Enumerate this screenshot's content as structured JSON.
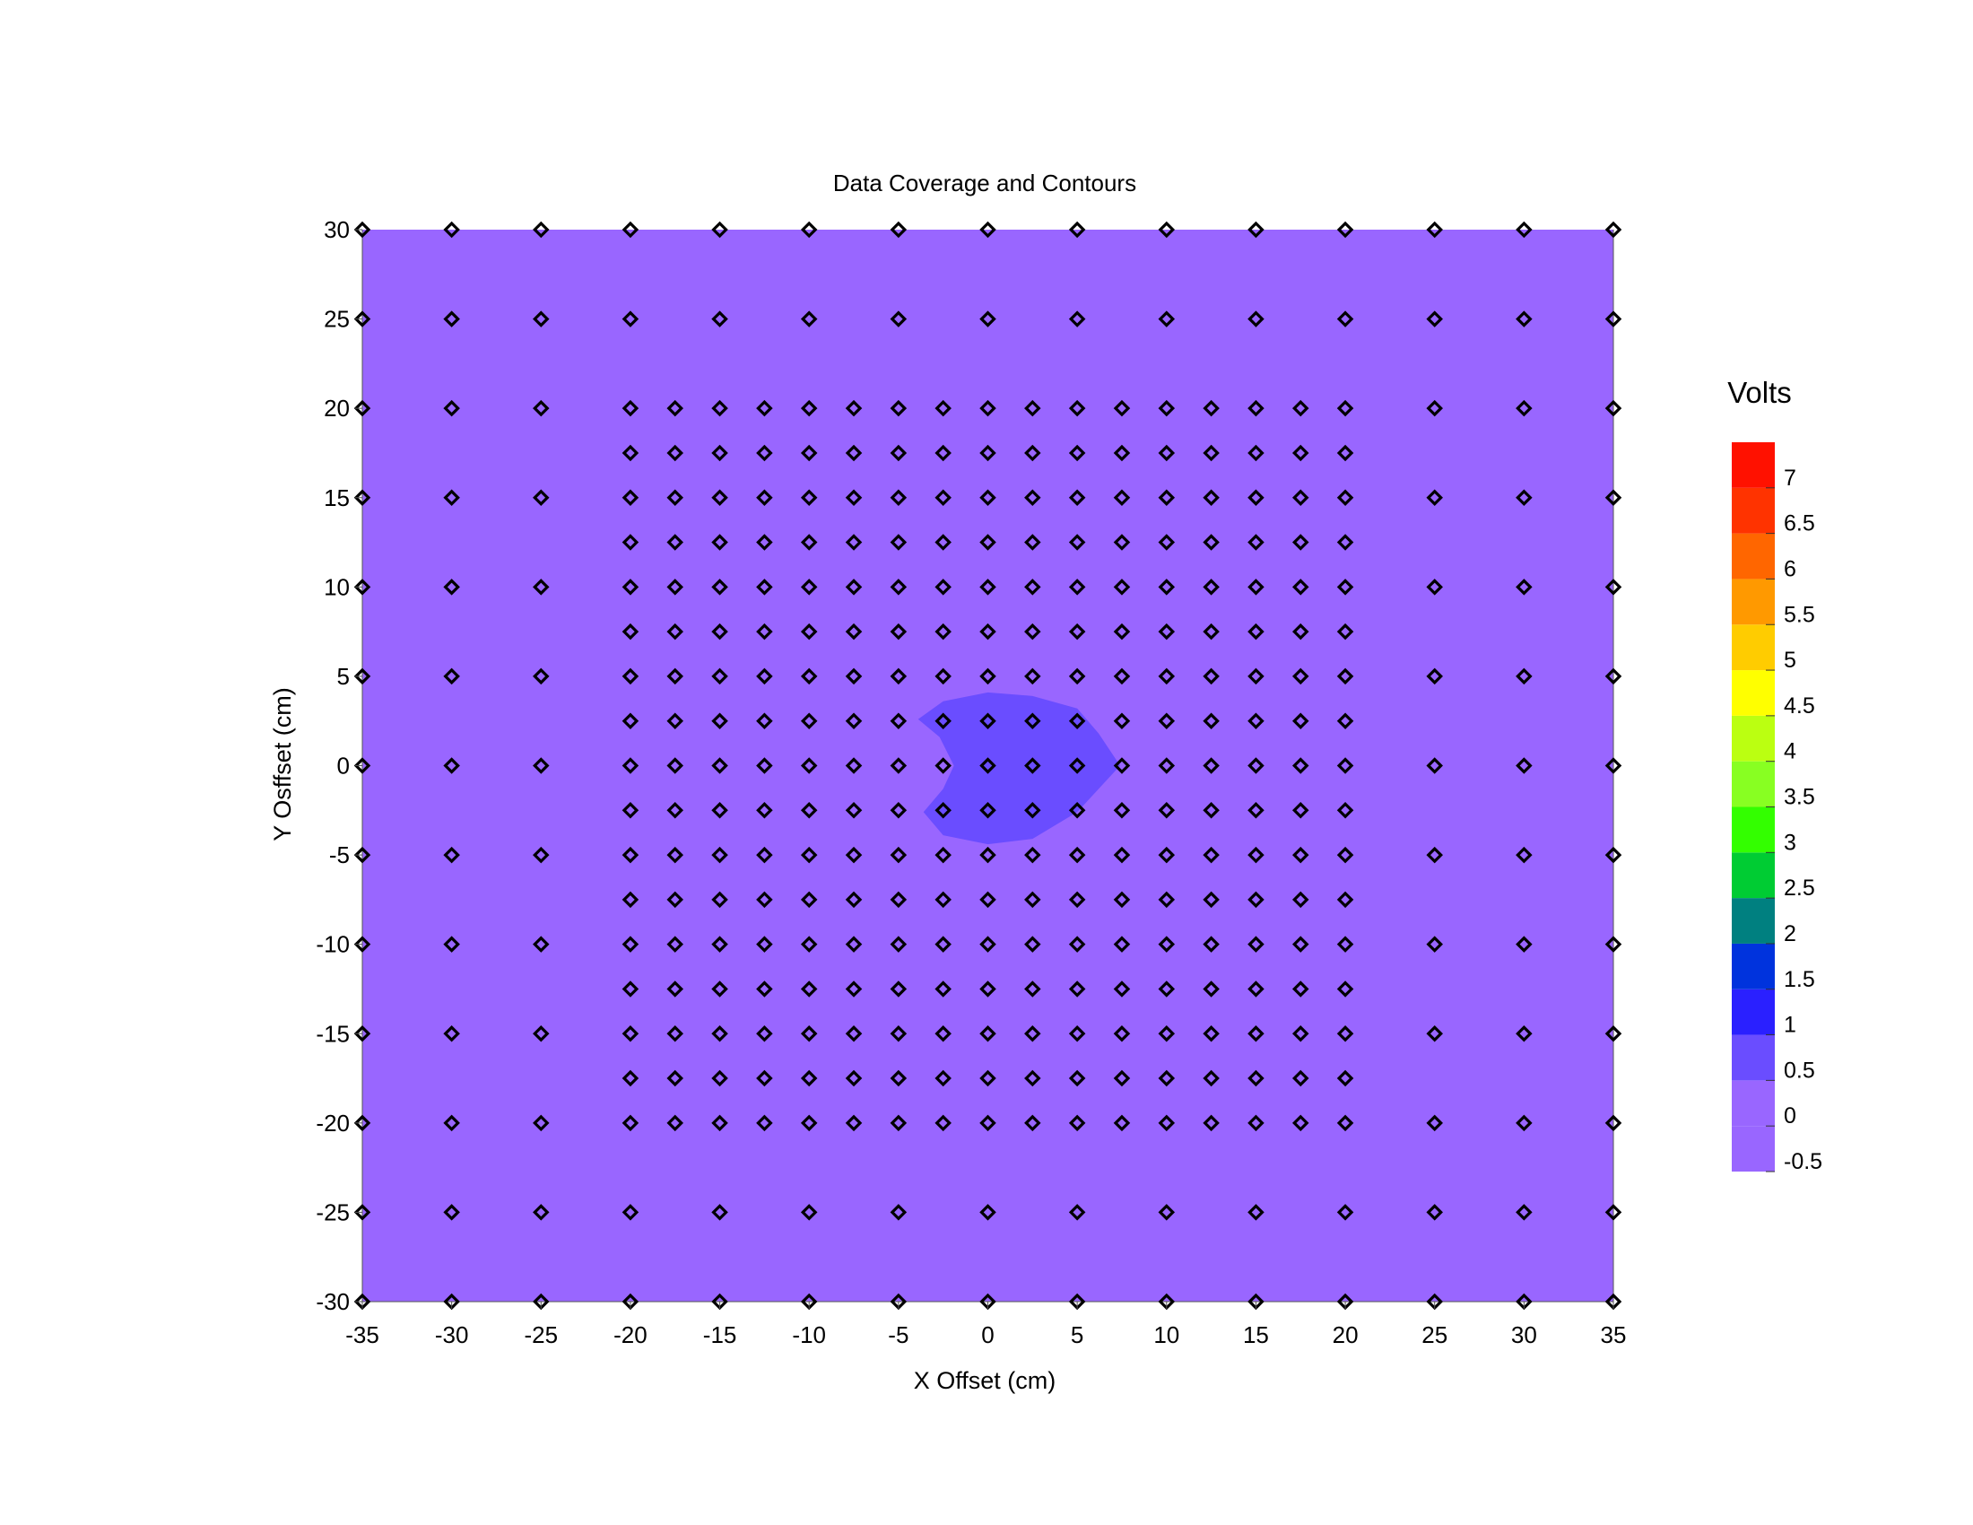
{
  "chart_data": {
    "type": "contour",
    "title": "Data Coverage and Contours",
    "xlabel": "X Offset (cm)",
    "ylabel": "Y Osffset (cm)",
    "xlim": [
      -35,
      35
    ],
    "ylim": [
      -30,
      30
    ],
    "xticks": [
      -35,
      -30,
      -25,
      -20,
      -15,
      -10,
      -5,
      0,
      5,
      10,
      15,
      20,
      25,
      30,
      35
    ],
    "yticks": [
      30,
      25,
      20,
      15,
      10,
      5,
      0,
      -5,
      -10,
      -15,
      -20,
      -25,
      -30
    ],
    "background_level": {
      "range": [
        0,
        0.5
      ],
      "color": "#9966ff"
    },
    "contour_region": {
      "range": [
        0.5,
        1
      ],
      "color": "#6a4dff",
      "boundary": [
        [
          -3.9,
          2.6
        ],
        [
          -2.5,
          3.6
        ],
        [
          0,
          4.1
        ],
        [
          2.5,
          3.9
        ],
        [
          5,
          3.2
        ],
        [
          6.2,
          1.8
        ],
        [
          7.4,
          0
        ],
        [
          6.2,
          -1.3
        ],
        [
          5,
          -2.6
        ],
        [
          2.5,
          -4.1
        ],
        [
          0,
          -4.4
        ],
        [
          -2.5,
          -3.9
        ],
        [
          -3.6,
          -2.6
        ],
        [
          -2.5,
          -1.3
        ],
        [
          -1.9,
          0
        ],
        [
          -2.7,
          1.6
        ]
      ]
    },
    "samples": {
      "coarse_x": [
        -35,
        -30,
        -25,
        -20,
        -15,
        -10,
        -5,
        0,
        5,
        10,
        15,
        20,
        25,
        30,
        35
      ],
      "coarse_y_outer": [
        30,
        -30
      ],
      "coarse_y_mid": [
        25,
        -25
      ],
      "mid_x_sparse": [
        -35,
        -30,
        -25,
        -20,
        -15,
        -10,
        -5,
        0,
        5,
        10,
        15,
        20,
        25,
        30,
        35
      ],
      "dense_x": [
        -20,
        -17.5,
        -15,
        -12.5,
        -10,
        -7.5,
        -5,
        -2.5,
        0,
        2.5,
        5,
        7.5,
        10,
        12.5,
        15,
        17.5,
        20
      ],
      "dense_y": [
        20,
        17.5,
        15,
        12.5,
        10,
        7.5,
        5,
        2.5,
        0,
        -2.5,
        -5,
        -7.5,
        -10,
        -12.5,
        -15,
        -17.5,
        -20
      ],
      "side_x": [
        -35,
        -30,
        -25,
        25,
        30,
        35
      ],
      "side_y": [
        20,
        15,
        10,
        5,
        0,
        -5,
        -10,
        -15,
        -20
      ]
    },
    "colorbar": {
      "title": "Volts",
      "levels": [
        -0.5,
        0,
        0.5,
        1,
        1.5,
        2,
        2.5,
        3,
        3.5,
        4,
        4.5,
        5,
        5.5,
        6,
        6.5,
        7,
        7.5
      ],
      "colors": [
        "#9966ff",
        "#9966ff",
        "#6a4dff",
        "#2a20ff",
        "#0033dd",
        "#008080",
        "#00cc33",
        "#33ff00",
        "#88ff22",
        "#bbff11",
        "#ffff00",
        "#ffcc00",
        "#ff9900",
        "#ff6600",
        "#ff3300",
        "#ff1100"
      ],
      "labels": [
        "7",
        "6.5",
        "6",
        "5.5",
        "5",
        "4.5",
        "4",
        "3.5",
        "3",
        "2.5",
        "2",
        "1.5",
        "1",
        "0.5",
        "0",
        "-0.5"
      ],
      "label_values": [
        7,
        6.5,
        6,
        5.5,
        5,
        4.5,
        4,
        3.5,
        3,
        2.5,
        2,
        1.5,
        1,
        0.5,
        0,
        -0.5
      ]
    }
  }
}
